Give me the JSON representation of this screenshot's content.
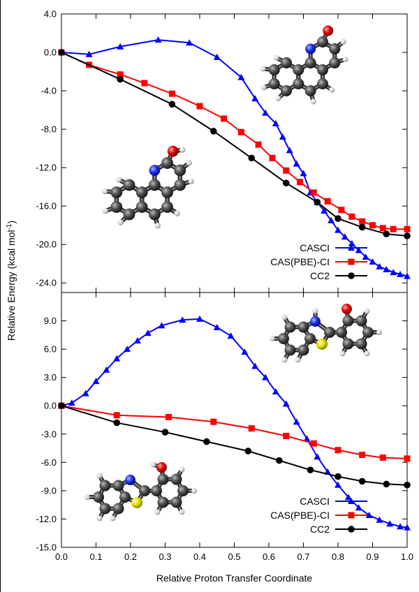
{
  "figure": {
    "xlabel": "Relative Proton Transfer Coordinate",
    "ylabel": "Relative Energy (kcal mol",
    "ylabel_sup": "-1",
    "ylabel_tail": ")"
  },
  "colors": {
    "CASCI": "#0000ff",
    "CAS(PBE)-CI": "#ff0000",
    "CC2": "#000000"
  },
  "chart_data": [
    {
      "type": "line",
      "panel": "top",
      "xlim": [
        0.0,
        1.0
      ],
      "ylim": [
        -25.0,
        4.0
      ],
      "xticks": [
        0.0,
        0.1,
        0.2,
        0.3,
        0.4,
        0.5,
        0.6,
        0.7,
        0.8,
        0.9,
        1.0
      ],
      "yticks": [
        4.0,
        0.0,
        -4.0,
        -8.0,
        -12.0,
        -16.0,
        -20.0,
        -24.0
      ],
      "ytick_labels": [
        "4.0",
        "0.0",
        "-4.0",
        "-8.0",
        "-12.0",
        "-16.0",
        "-20.0",
        "-24.0"
      ],
      "xtick_labels": [],
      "legend_position": "bottom-right",
      "series": [
        {
          "name": "CASCI",
          "marker": "triangle",
          "x": [
            0.0,
            0.08,
            0.17,
            0.28,
            0.37,
            0.45,
            0.52,
            0.56,
            0.59,
            0.62,
            0.64,
            0.66,
            0.68,
            0.7,
            0.72,
            0.74,
            0.76,
            0.78,
            0.8,
            0.82,
            0.84,
            0.86,
            0.88,
            0.9,
            0.92,
            0.94,
            0.96,
            0.98,
            1.0
          ],
          "y": [
            0.0,
            -0.2,
            0.6,
            1.3,
            1.0,
            -0.5,
            -2.6,
            -4.8,
            -6.3,
            -7.4,
            -8.8,
            -10.2,
            -11.6,
            -12.6,
            -14.6,
            -15.6,
            -16.5,
            -17.5,
            -18.5,
            -19.2,
            -19.9,
            -20.6,
            -21.3,
            -21.8,
            -22.3,
            -22.6,
            -22.9,
            -23.1,
            -23.3
          ]
        },
        {
          "name": "CAS(PBE)-CI",
          "marker": "square",
          "x": [
            0.0,
            0.08,
            0.17,
            0.24,
            0.32,
            0.4,
            0.47,
            0.52,
            0.57,
            0.61,
            0.65,
            0.69,
            0.73,
            0.77,
            0.81,
            0.84,
            0.87,
            0.9,
            0.93,
            0.96,
            1.0
          ],
          "y": [
            0.0,
            -1.3,
            -2.3,
            -3.2,
            -4.3,
            -5.6,
            -6.9,
            -8.3,
            -9.6,
            -11.0,
            -12.3,
            -13.5,
            -14.6,
            -15.5,
            -16.4,
            -17.1,
            -17.6,
            -18.0,
            -18.3,
            -18.4,
            -18.4
          ],
          "plot_x": [
            0.0,
            0.08,
            0.17,
            0.24,
            0.32,
            0.4,
            0.47,
            0.52,
            0.57,
            0.61,
            0.65,
            0.69,
            0.73,
            0.77,
            0.81,
            0.84,
            0.87,
            0.9,
            0.93,
            0.96,
            1.0
          ]
        },
        {
          "name": "CC2",
          "marker": "circle",
          "x": [
            0.0,
            0.17,
            0.32,
            0.44,
            0.55,
            0.65,
            0.74,
            0.8,
            0.87,
            0.94,
            1.0
          ],
          "y": [
            0.0,
            -2.8,
            -5.4,
            -8.2,
            -11.0,
            -13.6,
            -15.6,
            -17.3,
            -18.2,
            -18.9,
            -19.1
          ]
        }
      ]
    },
    {
      "type": "line",
      "panel": "bottom",
      "xlim": [
        0.0,
        1.0
      ],
      "ylim": [
        -15.0,
        12.0
      ],
      "xticks": [
        0.0,
        0.1,
        0.2,
        0.3,
        0.4,
        0.5,
        0.6,
        0.7,
        0.8,
        0.9,
        1.0
      ],
      "yticks": [
        9.0,
        6.0,
        3.0,
        0.0,
        -3.0,
        -6.0,
        -9.0,
        -12.0,
        -15.0
      ],
      "ytick_labels": [
        "9.0",
        "6.0",
        "3.0",
        "0.0",
        "-3.0",
        "-6.0",
        "-9.0",
        "-12.0",
        "-15.0"
      ],
      "xtick_labels": [
        "0.0",
        "0.1",
        "0.2",
        "0.3",
        "0.4",
        "0.5",
        "0.6",
        "0.7",
        "0.8",
        "0.9",
        "1.0"
      ],
      "legend_position": "bottom-right",
      "series": [
        {
          "name": "CASCI",
          "marker": "triangle",
          "x": [
            0.0,
            0.03,
            0.07,
            0.1,
            0.13,
            0.16,
            0.19,
            0.22,
            0.25,
            0.29,
            0.35,
            0.4,
            0.45,
            0.49,
            0.53,
            0.56,
            0.59,
            0.62,
            0.65,
            0.68,
            0.71,
            0.74,
            0.77,
            0.8,
            0.83,
            0.86,
            0.89,
            0.92,
            0.95,
            0.98,
            1.0
          ],
          "y": [
            0.0,
            0.3,
            1.3,
            2.6,
            3.8,
            5.0,
            6.0,
            6.9,
            7.7,
            8.5,
            9.1,
            9.2,
            8.3,
            7.4,
            5.7,
            4.2,
            3.0,
            1.5,
            0.2,
            -1.7,
            -3.5,
            -5.4,
            -7.0,
            -8.4,
            -9.7,
            -10.8,
            -11.6,
            -12.1,
            -12.5,
            -12.8,
            -12.9
          ]
        },
        {
          "name": "CAS(PBE)-CI",
          "marker": "square",
          "x": [
            0.0,
            0.16,
            0.31,
            0.44,
            0.55,
            0.65,
            0.73,
            0.8,
            0.87,
            0.93,
            1.0
          ],
          "y": [
            0.0,
            -1.0,
            -1.2,
            -1.7,
            -2.4,
            -3.2,
            -4.0,
            -4.7,
            -5.2,
            -5.5,
            -5.6
          ]
        },
        {
          "name": "CC2",
          "marker": "circle",
          "x": [
            0.0,
            0.16,
            0.3,
            0.42,
            0.54,
            0.63,
            0.72,
            0.8,
            0.87,
            0.94,
            1.0
          ],
          "y": [
            0.0,
            -1.8,
            -2.8,
            -3.8,
            -4.8,
            -5.8,
            -6.8,
            -7.5,
            -8.0,
            -8.3,
            -8.4
          ]
        }
      ]
    }
  ],
  "molecules": [
    {
      "panel": "top",
      "position": "top-right"
    },
    {
      "panel": "top",
      "position": "middle-left"
    },
    {
      "panel": "bottom",
      "position": "top-right"
    },
    {
      "panel": "bottom",
      "position": "bottom-left"
    }
  ]
}
